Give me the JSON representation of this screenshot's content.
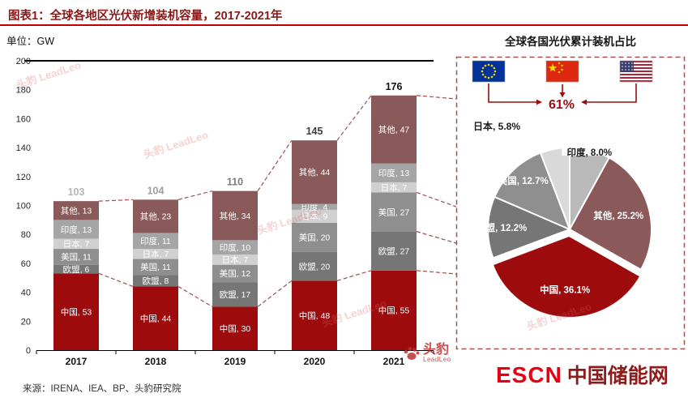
{
  "header": {
    "title": "图表1：全球各地区光伏新增装机容量，2017-2021年",
    "unit_label": "单位：GW"
  },
  "footer": {
    "source": "来源：IRENA、IEA、BP、头豹研究院",
    "logo": {
      "escn": "ESCN",
      "site_name": "中国储能网"
    }
  },
  "watermark": {
    "cn": "头豹",
    "en": "LeadLeo"
  },
  "chart_data": [
    {
      "type": "stacked-bar",
      "title": "全球各地区光伏新增装机容量，2017-2021年",
      "unit": "GW",
      "categories": [
        "2017",
        "2018",
        "2019",
        "2020",
        "2021"
      ],
      "totals": [
        103,
        104,
        110,
        145,
        176
      ],
      "total_colors": [
        "#b5b5b5",
        "#9e9e9e",
        "#7a7a7a",
        "#3d3d3d",
        "#111111"
      ],
      "series": [
        {
          "name": "中国",
          "color": "#9e0b0c",
          "values": [
            53,
            44,
            30,
            48,
            55
          ]
        },
        {
          "name": "欧盟",
          "color": "#767676",
          "values": [
            6,
            8,
            17,
            20,
            27
          ]
        },
        {
          "name": "美国",
          "color": "#8f8f8f",
          "values": [
            11,
            11,
            12,
            20,
            27
          ]
        },
        {
          "name": "日本",
          "color": "#d0d0d0",
          "values": [
            7,
            7,
            7,
            9,
            7
          ]
        },
        {
          "name": "印度",
          "color": "#a5a5a5",
          "values": [
            13,
            11,
            10,
            4,
            13
          ]
        },
        {
          "name": "其他",
          "color": "#8a5a5a",
          "values": [
            13,
            23,
            34,
            44,
            47
          ]
        }
      ],
      "ylim": [
        0,
        200
      ],
      "ytick_step": 20,
      "grid": false
    },
    {
      "type": "pie",
      "title": "全球各国光伏累计装机占比",
      "slices": [
        {
          "name": "印度",
          "pct": 8.0,
          "label": "印度, 8.0%",
          "color": "#b9b9b9",
          "label_color": "#1a1a1a",
          "label_r": 0.97,
          "label_bg": true
        },
        {
          "name": "其他",
          "pct": 25.2,
          "label": "其他, 25.2%",
          "color": "#8a5a5a",
          "label_color": "#ffffff",
          "label_r": 0.62
        },
        {
          "name": "中国",
          "pct": 36.1,
          "label": "中国, 36.1%",
          "color": "#9e0b0c",
          "label_color": "#ffffff",
          "label_r": 0.66,
          "exploded": true
        },
        {
          "name": "欧盟",
          "pct": 12.2,
          "label": "欧盟, 12.2%",
          "color": "#767676",
          "label_color": "#ffffff",
          "label_r": 0.83
        },
        {
          "name": "美国",
          "pct": 12.7,
          "label": "美国, 12.7%",
          "color": "#8f8f8f",
          "label_color": "#ffffff",
          "label_r": 0.82
        },
        {
          "name": "日本",
          "pct": 5.8,
          "label": "日本, 5.8%",
          "color": "#d9d9d9",
          "label_color": "#1a1a1a",
          "label_xy": [
            584,
            160
          ]
        }
      ],
      "callout": {
        "value": "61%",
        "note_flags": [
          "eu-flag-icon",
          "china-flag-icon",
          "usa-flag-icon"
        ]
      }
    }
  ]
}
